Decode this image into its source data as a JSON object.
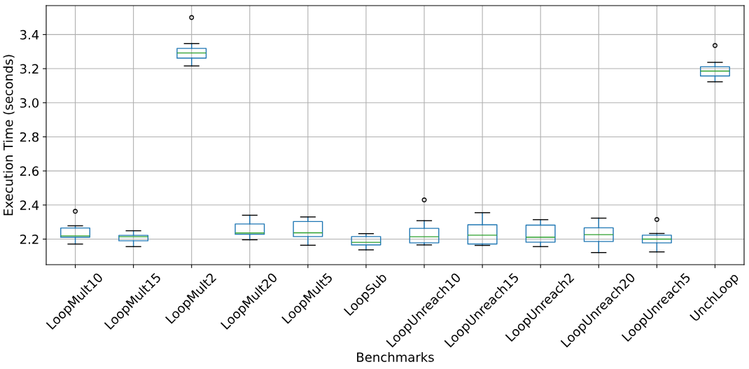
{
  "chart_data": {
    "type": "box",
    "xlabel": "Benchmarks",
    "ylabel": "Execution Time (seconds)",
    "categories": [
      "LoopMult10",
      "LoopMult15",
      "LoopMult2",
      "LoopMult20",
      "LoopMult5",
      "LoopSub",
      "LoopUnreach10",
      "LoopUnreach15",
      "LoopUnreach2",
      "LoopUnreach20",
      "LoopUnreach5",
      "UnchLoop"
    ],
    "boxes": [
      {
        "low": 2.171,
        "q1": 2.211,
        "median": 2.219,
        "q3": 2.265,
        "high": 2.278,
        "outliers": [
          2.363
        ]
      },
      {
        "low": 2.156,
        "q1": 2.19,
        "median": 2.214,
        "q3": 2.222,
        "high": 2.249
      },
      {
        "low": 3.216,
        "q1": 3.262,
        "median": 3.292,
        "q3": 3.319,
        "high": 3.347,
        "outliers": [
          3.5
        ]
      },
      {
        "low": 2.196,
        "q1": 2.228,
        "median": 2.236,
        "q3": 2.289,
        "high": 2.34
      },
      {
        "low": 2.164,
        "q1": 2.215,
        "median": 2.237,
        "q3": 2.303,
        "high": 2.33
      },
      {
        "low": 2.137,
        "q1": 2.166,
        "median": 2.181,
        "q3": 2.215,
        "high": 2.232
      },
      {
        "low": 2.166,
        "q1": 2.178,
        "median": 2.214,
        "q3": 2.263,
        "high": 2.308,
        "outliers": [
          2.43
        ]
      },
      {
        "low": 2.163,
        "q1": 2.171,
        "median": 2.223,
        "q3": 2.284,
        "high": 2.355
      },
      {
        "low": 2.156,
        "q1": 2.182,
        "median": 2.211,
        "q3": 2.282,
        "high": 2.314
      },
      {
        "low": 2.121,
        "q1": 2.186,
        "median": 2.226,
        "q3": 2.266,
        "high": 2.323
      },
      {
        "low": 2.125,
        "q1": 2.178,
        "median": 2.2,
        "q3": 2.223,
        "high": 2.233,
        "outliers": [
          2.315
        ]
      },
      {
        "low": 3.123,
        "q1": 3.157,
        "median": 3.186,
        "q3": 3.211,
        "high": 3.237,
        "outliers": [
          3.336
        ]
      }
    ],
    "color": "#1f77b4",
    "ylim": [
      2.05,
      3.57
    ],
    "yticks": [
      2.2,
      2.4,
      2.6,
      2.8,
      {
        "value": 3,
        "label": "3.0"
      },
      3.2,
      3.4
    ],
    "grid": true
  }
}
